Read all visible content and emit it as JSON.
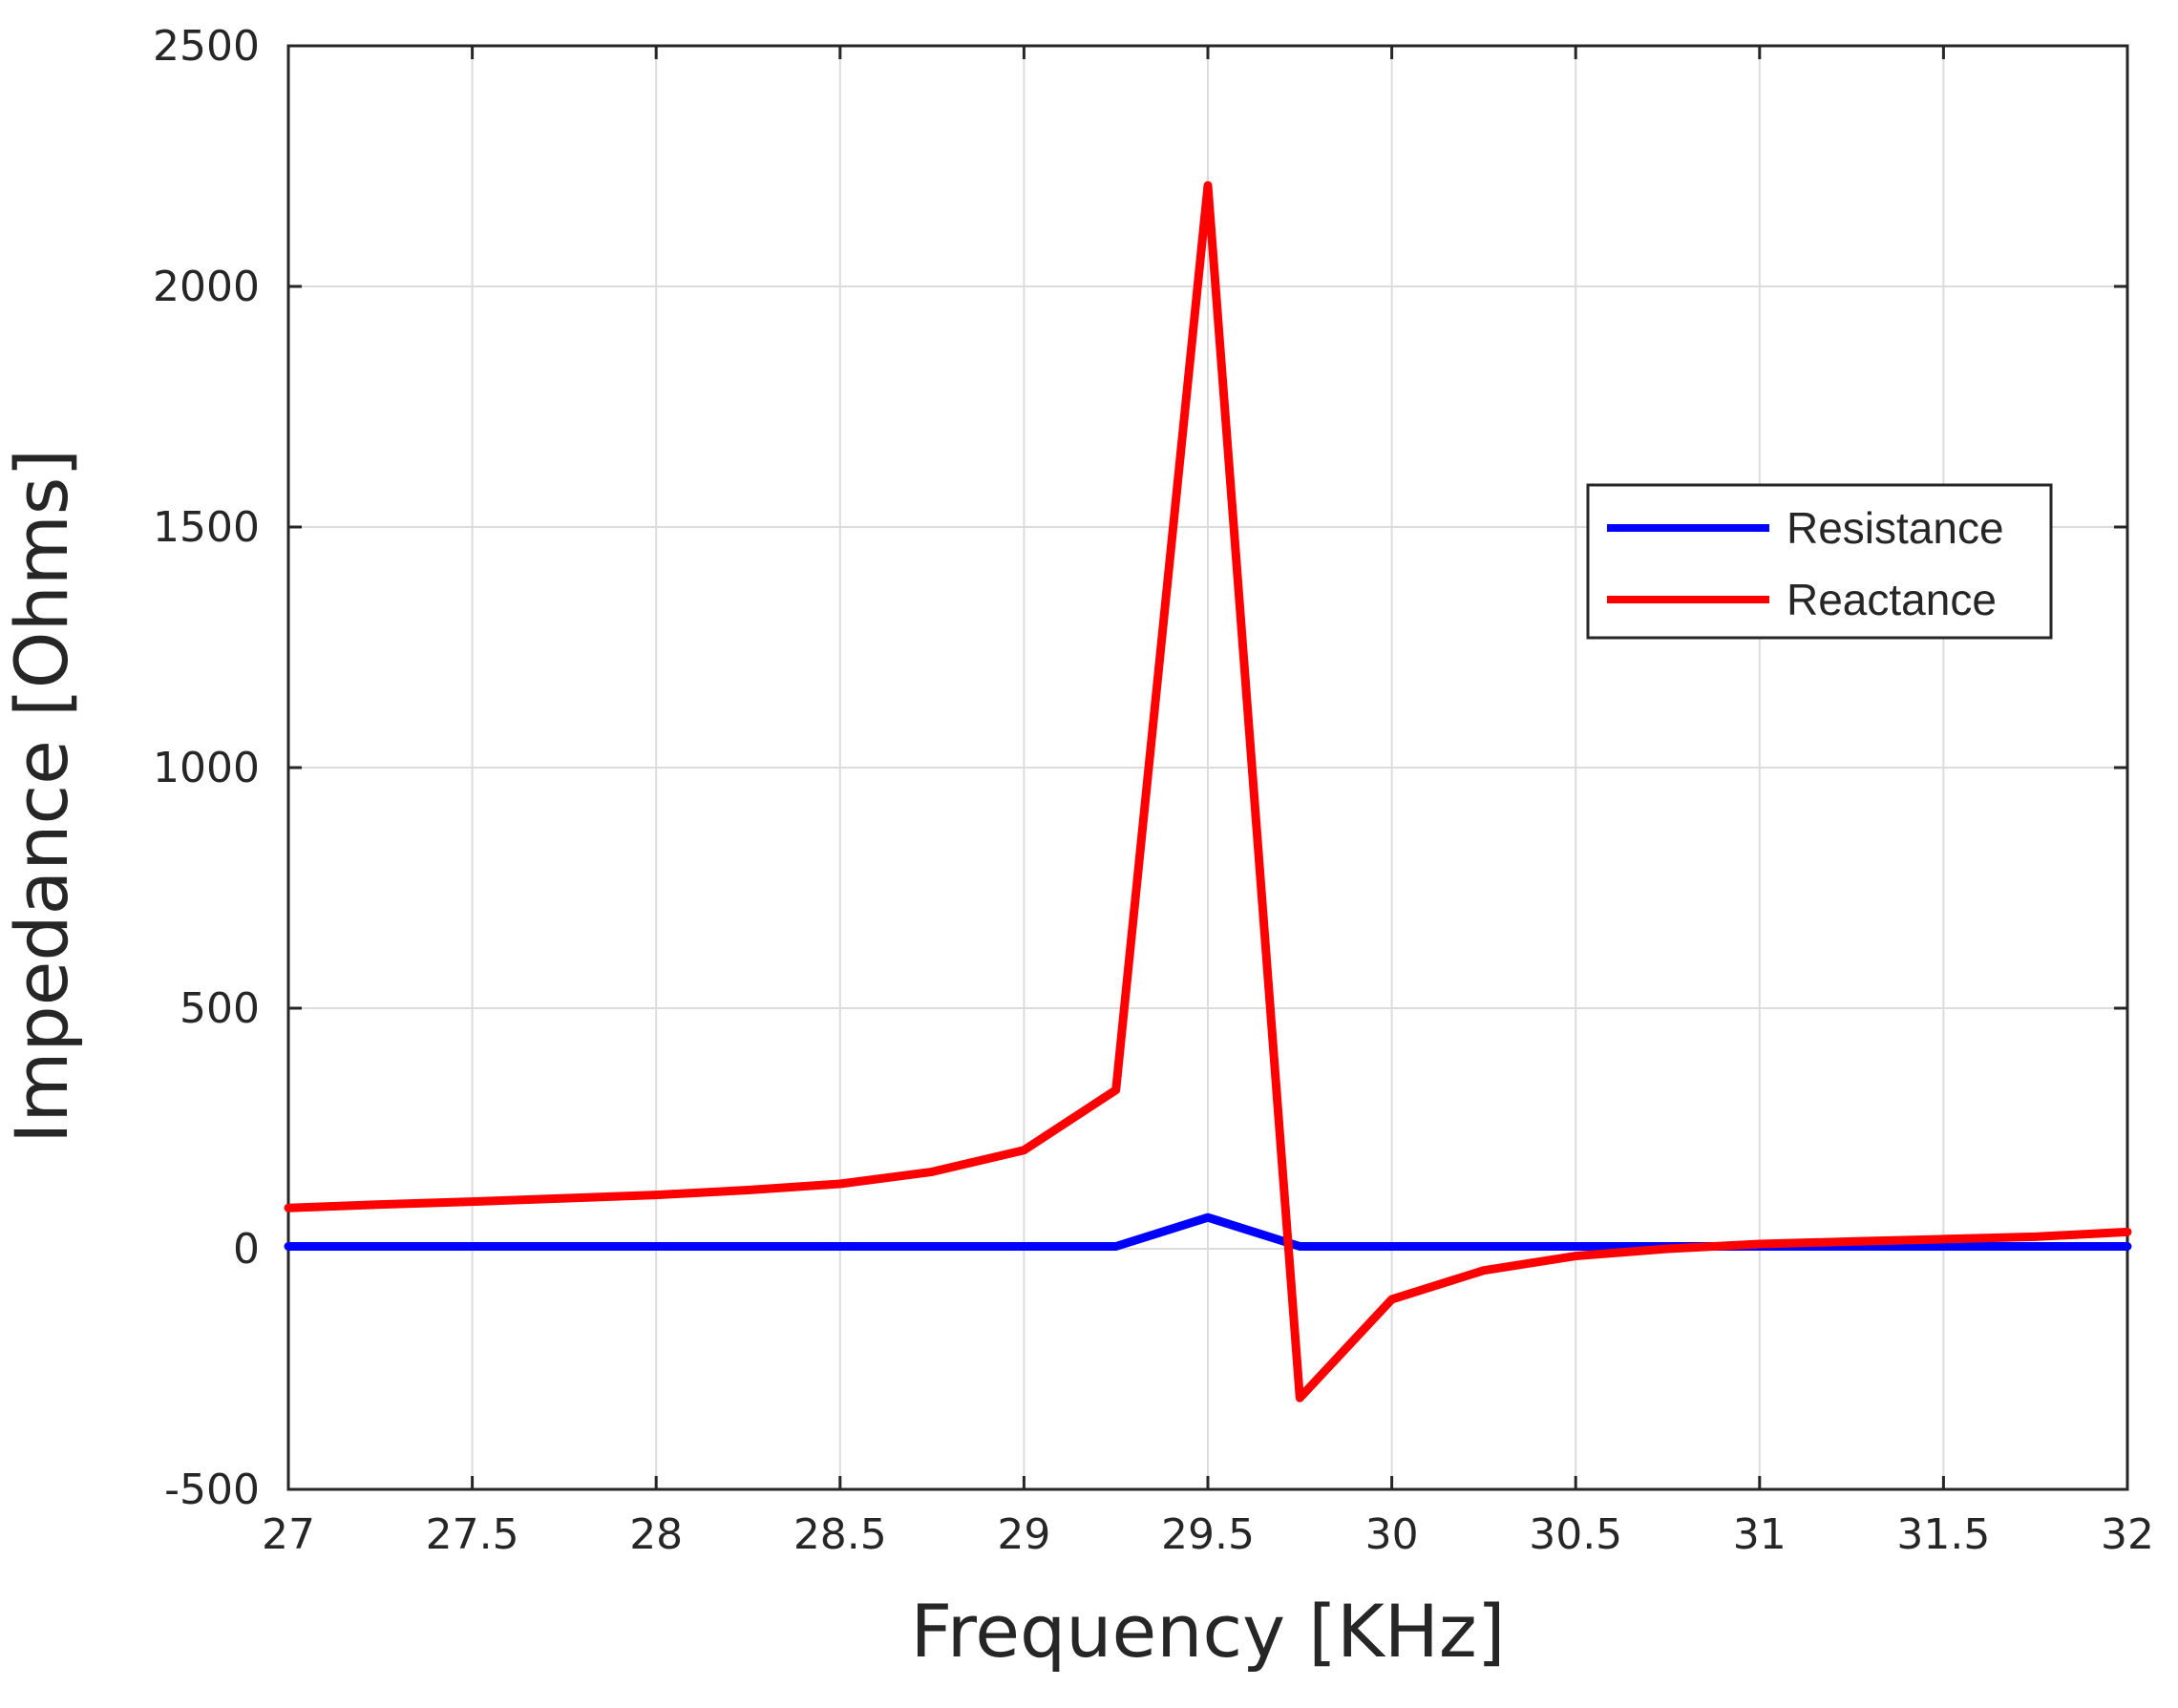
{
  "chart_data": {
    "type": "line",
    "title": "",
    "xlabel": "Frequency [KHz]",
    "ylabel": "Impedance [Ohms]",
    "xlim": [
      27,
      32
    ],
    "ylim": [
      -500,
      2500
    ],
    "xticks": [
      "27",
      "27.5",
      "28",
      "28.5",
      "29",
      "29.5",
      "30",
      "30.5",
      "31",
      "31.5",
      "32"
    ],
    "yticks": [
      "-500",
      "0",
      "500",
      "1000",
      "1500",
      "2000",
      "2500"
    ],
    "grid": true,
    "legend_position": "center-right",
    "series": [
      {
        "name": "Resistance",
        "color": "#0000ff",
        "x": [
          27,
          27.25,
          27.5,
          27.75,
          28,
          28.25,
          28.5,
          28.75,
          29,
          29.25,
          29.5,
          29.75,
          30,
          30.25,
          30.5,
          30.75,
          31,
          31.25,
          31.5,
          31.75,
          32
        ],
        "values": [
          5,
          5,
          5,
          5,
          5,
          5,
          5,
          5,
          5,
          5,
          65,
          5,
          5,
          5,
          5,
          5,
          5,
          5,
          5,
          5,
          5
        ]
      },
      {
        "name": "Reactance",
        "color": "#ff0000",
        "x": [
          27,
          27.25,
          27.5,
          27.75,
          28,
          28.25,
          28.5,
          28.75,
          29,
          29.25,
          29.5,
          29.75,
          30,
          30.25,
          30.5,
          30.75,
          31,
          31.25,
          31.5,
          31.75,
          32
        ],
        "values": [
          85,
          92,
          98,
          105,
          112,
          122,
          135,
          160,
          205,
          330,
          2210,
          -310,
          -105,
          -45,
          -15,
          0,
          10,
          15,
          20,
          25,
          35
        ]
      }
    ]
  }
}
